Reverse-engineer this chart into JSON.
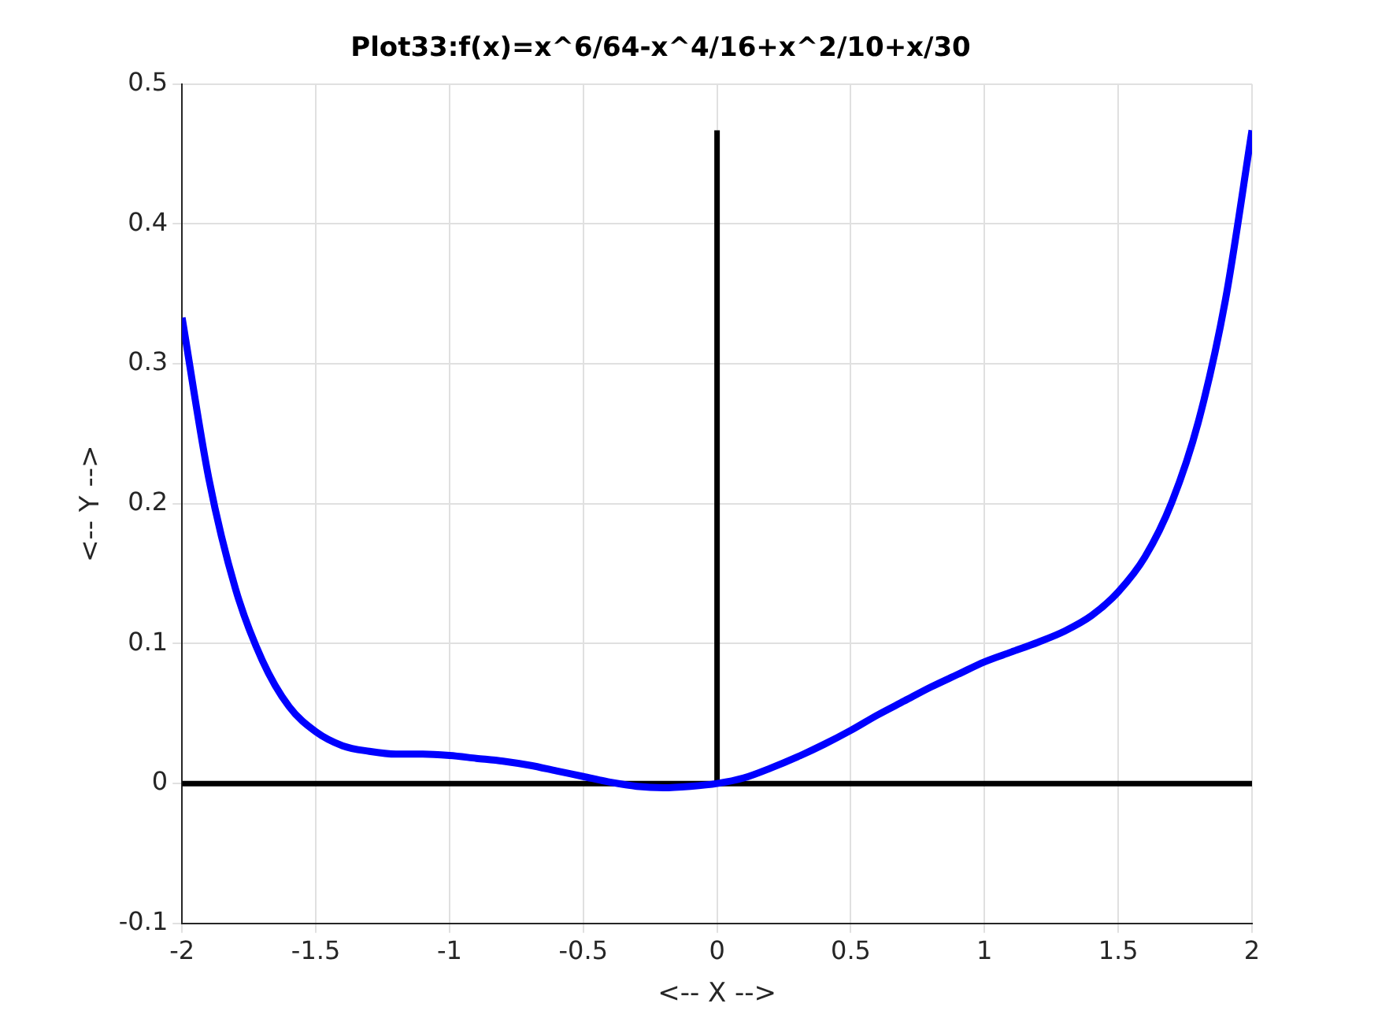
{
  "chart_data": {
    "type": "line",
    "title": "Plot33:f(x)=x^6/64-x^4/16+x^2/10+x/30",
    "xlabel": "<-- X -->",
    "ylabel": "<-- Y -->",
    "xlim": [
      -2,
      2
    ],
    "ylim": [
      -0.1,
      0.5
    ],
    "xticks": [
      -2,
      -1.5,
      -1,
      -0.5,
      0,
      0.5,
      1,
      1.5,
      2
    ],
    "yticks": [
      -0.1,
      0,
      0.1,
      0.2,
      0.3,
      0.4,
      0.5
    ],
    "grid": true,
    "legend": false,
    "marker": "none",
    "line_style": "solid",
    "series": [
      {
        "type": "line",
        "color": "#0000ff",
        "x": [
          -2,
          -1.9,
          -1.8,
          -1.7,
          -1.6,
          -1.5,
          -1.4,
          -1.3,
          -1.2,
          -1.1,
          -1,
          -0.9,
          -0.8,
          -0.7,
          -0.6,
          -0.5,
          -0.4,
          -0.3,
          -0.2,
          -0.1,
          0,
          0.1,
          0.2,
          0.3,
          0.4,
          0.5,
          0.6,
          0.7,
          0.8,
          0.9,
          1,
          1.1,
          1.2,
          1.3,
          1.4,
          1.5,
          1.6,
          1.7,
          1.8,
          1.9,
          2
        ],
        "values": [
          0.333,
          0.218,
          0.139,
          0.088,
          0.055,
          0.037,
          0.027,
          0.023,
          0.021,
          0.021,
          0.02,
          0.018,
          0.016,
          0.013,
          0.009,
          0.005,
          0.001,
          -0.002,
          -0.003,
          -0.002,
          0,
          0.004,
          0.011,
          0.019,
          0.028,
          0.038,
          0.049,
          0.059,
          0.069,
          0.078,
          0.087,
          0.094,
          0.101,
          0.109,
          0.12,
          0.137,
          0.162,
          0.201,
          0.259,
          0.345,
          0.467
        ]
      },
      {
        "type": "line",
        "color": "#000000",
        "x": [
          -2,
          2
        ],
        "values": [
          0,
          0
        ]
      },
      {
        "type": "line",
        "color": "#000000",
        "x": [
          0,
          0
        ],
        "values": [
          0,
          0.467
        ]
      }
    ]
  }
}
